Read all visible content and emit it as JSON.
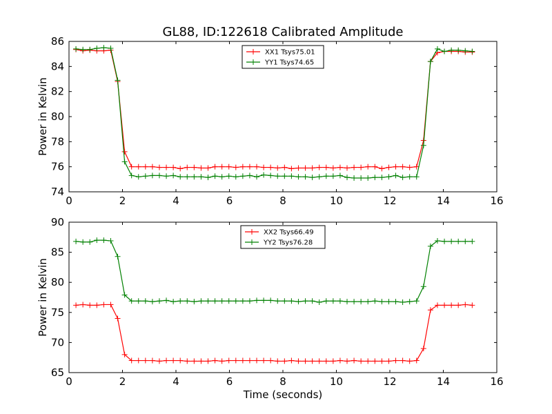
{
  "figure_title": "GL88, ID:122618 Calibrated Amplitude",
  "chart_data": [
    {
      "type": "line",
      "title": "GL88, ID:122618 Calibrated Amplitude",
      "xlabel": "",
      "ylabel": "Power in Kelvin",
      "xlim": [
        0,
        16
      ],
      "ylim": [
        74,
        86
      ],
      "xticks": [
        0,
        2,
        4,
        6,
        8,
        10,
        12,
        14,
        16
      ],
      "yticks": [
        74,
        76,
        78,
        80,
        82,
        84,
        86
      ],
      "grid": false,
      "legend_position": "top-center",
      "x": [
        0.26,
        0.52,
        0.78,
        1.04,
        1.3,
        1.56,
        1.82,
        2.08,
        2.34,
        2.6,
        2.86,
        3.12,
        3.38,
        3.64,
        3.9,
        4.16,
        4.42,
        4.68,
        4.94,
        5.2,
        5.46,
        5.72,
        5.98,
        6.24,
        6.5,
        6.76,
        7.02,
        7.28,
        7.54,
        7.8,
        8.06,
        8.32,
        8.58,
        8.84,
        9.1,
        9.36,
        9.62,
        9.88,
        10.14,
        10.4,
        10.66,
        10.92,
        11.18,
        11.44,
        11.7,
        11.96,
        12.22,
        12.48,
        12.74,
        13.0,
        13.26,
        13.52,
        13.78,
        14.04,
        14.3,
        14.56,
        14.82,
        15.08
      ],
      "series": [
        {
          "name": "XX1 Tsys75.01",
          "color": "#ff0000",
          "values": [
            85.35,
            85.25,
            85.3,
            85.25,
            85.25,
            85.3,
            82.8,
            77.2,
            76.0,
            76.0,
            76.0,
            76.0,
            75.95,
            75.95,
            75.95,
            75.85,
            75.95,
            75.95,
            75.9,
            75.9,
            76.0,
            76.0,
            76.0,
            75.95,
            76.0,
            76.0,
            76.0,
            75.95,
            75.95,
            75.9,
            75.95,
            75.85,
            75.9,
            75.9,
            75.9,
            75.95,
            75.95,
            75.9,
            75.95,
            75.9,
            75.95,
            75.95,
            76.0,
            76.0,
            75.85,
            75.95,
            76.0,
            76.0,
            75.95,
            76.0,
            78.1,
            84.4,
            85.1,
            85.2,
            85.2,
            85.2,
            85.15,
            85.15
          ]
        },
        {
          "name": "YY1 Tsys74.65",
          "color": "#008000",
          "values": [
            85.4,
            85.35,
            85.35,
            85.45,
            85.5,
            85.45,
            82.9,
            76.4,
            75.3,
            75.2,
            75.25,
            75.3,
            75.3,
            75.25,
            75.3,
            75.2,
            75.2,
            75.2,
            75.2,
            75.15,
            75.25,
            75.2,
            75.25,
            75.2,
            75.25,
            75.3,
            75.2,
            75.35,
            75.3,
            75.25,
            75.25,
            75.25,
            75.2,
            75.2,
            75.15,
            75.2,
            75.25,
            75.25,
            75.3,
            75.15,
            75.1,
            75.1,
            75.1,
            75.15,
            75.15,
            75.2,
            75.3,
            75.15,
            75.2,
            75.2,
            77.7,
            84.4,
            85.4,
            85.2,
            85.3,
            85.3,
            85.25,
            85.2
          ]
        }
      ]
    },
    {
      "type": "line",
      "title": "",
      "xlabel": "Time (seconds)",
      "ylabel": "Power in Kelvin",
      "xlim": [
        0,
        16
      ],
      "ylim": [
        65,
        90
      ],
      "xticks": [
        0,
        2,
        4,
        6,
        8,
        10,
        12,
        14,
        16
      ],
      "yticks": [
        65,
        70,
        75,
        80,
        85,
        90
      ],
      "grid": false,
      "legend_position": "top-center",
      "x": [
        0.26,
        0.52,
        0.78,
        1.04,
        1.3,
        1.56,
        1.82,
        2.08,
        2.34,
        2.6,
        2.86,
        3.12,
        3.38,
        3.64,
        3.9,
        4.16,
        4.42,
        4.68,
        4.94,
        5.2,
        5.46,
        5.72,
        5.98,
        6.24,
        6.5,
        6.76,
        7.02,
        7.28,
        7.54,
        7.8,
        8.06,
        8.32,
        8.58,
        8.84,
        9.1,
        9.36,
        9.62,
        9.88,
        10.14,
        10.4,
        10.66,
        10.92,
        11.18,
        11.44,
        11.7,
        11.96,
        12.22,
        12.48,
        12.74,
        13.0,
        13.26,
        13.52,
        13.78,
        14.04,
        14.3,
        14.56,
        14.82,
        15.08
      ],
      "series": [
        {
          "name": "XX2 Tsys66.49",
          "color": "#ff0000",
          "values": [
            76.2,
            76.3,
            76.2,
            76.2,
            76.3,
            76.3,
            74.0,
            68.0,
            67.0,
            67.0,
            67.0,
            67.0,
            66.9,
            67.0,
            67.0,
            67.0,
            66.9,
            66.9,
            66.9,
            66.9,
            67.0,
            66.9,
            67.0,
            67.0,
            67.0,
            67.0,
            67.0,
            67.0,
            67.0,
            66.9,
            66.9,
            67.0,
            66.9,
            66.9,
            66.9,
            66.9,
            66.9,
            66.9,
            67.0,
            66.9,
            67.0,
            66.9,
            66.9,
            66.9,
            66.9,
            66.9,
            67.0,
            67.0,
            66.9,
            67.0,
            69.0,
            75.4,
            76.2,
            76.2,
            76.2,
            76.2,
            76.3,
            76.2
          ]
        },
        {
          "name": "YY2 Tsys76.28",
          "color": "#008000",
          "values": [
            86.8,
            86.7,
            86.7,
            87.0,
            87.0,
            86.9,
            84.3,
            77.9,
            76.9,
            76.9,
            76.9,
            76.8,
            76.9,
            77.0,
            76.8,
            76.9,
            76.9,
            76.8,
            76.9,
            76.9,
            76.9,
            76.9,
            76.9,
            76.9,
            76.9,
            76.9,
            77.0,
            77.0,
            77.0,
            76.9,
            76.9,
            76.9,
            76.8,
            76.9,
            76.9,
            76.7,
            76.9,
            76.9,
            76.9,
            76.8,
            76.8,
            76.8,
            76.8,
            76.9,
            76.8,
            76.8,
            76.8,
            76.7,
            76.8,
            76.9,
            79.3,
            86.0,
            86.9,
            86.8,
            86.8,
            86.8,
            86.8,
            86.8
          ]
        }
      ]
    }
  ]
}
